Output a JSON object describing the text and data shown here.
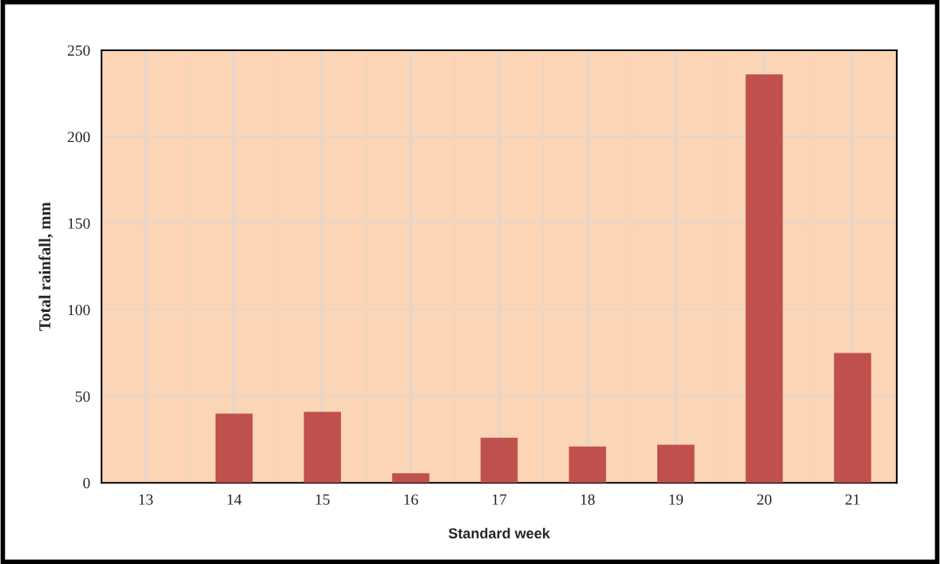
{
  "chart_data": {
    "type": "bar",
    "xlabel": "Standard week",
    "ylabel": "Total rainfall, mm",
    "categories": [
      "13",
      "14",
      "15",
      "16",
      "17",
      "18",
      "19",
      "20",
      "21"
    ],
    "values": [
      0,
      40,
      41,
      5.5,
      26,
      21,
      22,
      236,
      75
    ],
    "color": "#c0504d",
    "ylim": [
      0,
      250
    ],
    "yticks": [
      0,
      50,
      100,
      150,
      200,
      250
    ],
    "grid": true,
    "legend": false
  }
}
